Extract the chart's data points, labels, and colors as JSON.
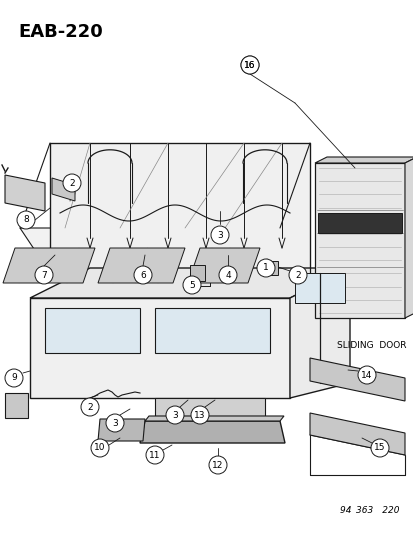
{
  "title": "EAB−220",
  "bg_color": "#ffffff",
  "footnote": "94 363 220",
  "sliding_door_label": "SLIDING  DOOR",
  "line_color": "#1a1a1a",
  "gray_fill": "#e8e8e8",
  "dark_fill": "#555555",
  "mid_fill": "#aaaaaa"
}
